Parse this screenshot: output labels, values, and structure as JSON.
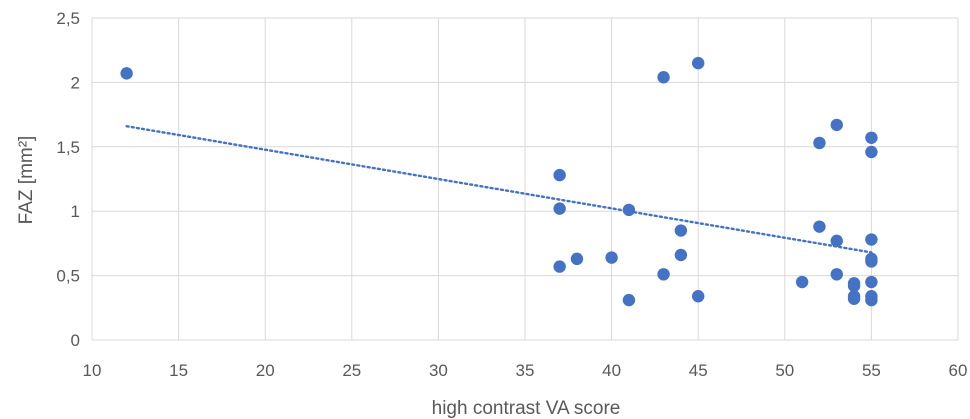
{
  "chart_data": {
    "type": "scatter",
    "title": "",
    "xlabel": "high contrast VA score",
    "ylabel": "FAZ [mm²]",
    "xlim": [
      10,
      60
    ],
    "ylim": [
      0,
      2.5
    ],
    "x_ticks": [
      10,
      15,
      20,
      25,
      30,
      35,
      40,
      45,
      50,
      55,
      60
    ],
    "y_ticks": [
      0,
      0.5,
      1,
      1.5,
      2,
      2.5
    ],
    "x_tick_labels": [
      "10",
      "15",
      "20",
      "25",
      "30",
      "35",
      "40",
      "45",
      "50",
      "55",
      "60"
    ],
    "y_tick_labels": [
      "0",
      "0,5",
      "1",
      "1,5",
      "2",
      "2,5"
    ],
    "grid": true,
    "legend": false,
    "marker_color": "#4472c4",
    "trendline": {
      "type": "linear",
      "style": "dotted",
      "color": "#4472c4",
      "x": [
        12,
        55
      ],
      "y": [
        1.66,
        0.68
      ]
    },
    "series": [
      {
        "points": [
          {
            "x": 12,
            "y": 2.07
          },
          {
            "x": 37,
            "y": 1.28
          },
          {
            "x": 37,
            "y": 1.02
          },
          {
            "x": 37,
            "y": 0.57
          },
          {
            "x": 38,
            "y": 0.63
          },
          {
            "x": 40,
            "y": 0.64
          },
          {
            "x": 41,
            "y": 1.01
          },
          {
            "x": 41,
            "y": 0.31
          },
          {
            "x": 43,
            "y": 2.04
          },
          {
            "x": 43,
            "y": 0.51
          },
          {
            "x": 44,
            "y": 0.85
          },
          {
            "x": 44,
            "y": 0.66
          },
          {
            "x": 45,
            "y": 2.15
          },
          {
            "x": 45,
            "y": 0.34
          },
          {
            "x": 51,
            "y": 0.45
          },
          {
            "x": 52,
            "y": 1.53
          },
          {
            "x": 52,
            "y": 0.88
          },
          {
            "x": 53,
            "y": 1.67
          },
          {
            "x": 53,
            "y": 0.77
          },
          {
            "x": 53,
            "y": 0.51
          },
          {
            "x": 54,
            "y": 0.44
          },
          {
            "x": 54,
            "y": 0.42
          },
          {
            "x": 54,
            "y": 0.34
          },
          {
            "x": 54,
            "y": 0.32
          },
          {
            "x": 55,
            "y": 1.57
          },
          {
            "x": 55,
            "y": 1.46
          },
          {
            "x": 55,
            "y": 0.78
          },
          {
            "x": 55,
            "y": 0.63
          },
          {
            "x": 55,
            "y": 0.61
          },
          {
            "x": 55,
            "y": 0.45
          },
          {
            "x": 55,
            "y": 0.34
          },
          {
            "x": 55,
            "y": 0.31
          }
        ]
      }
    ]
  }
}
